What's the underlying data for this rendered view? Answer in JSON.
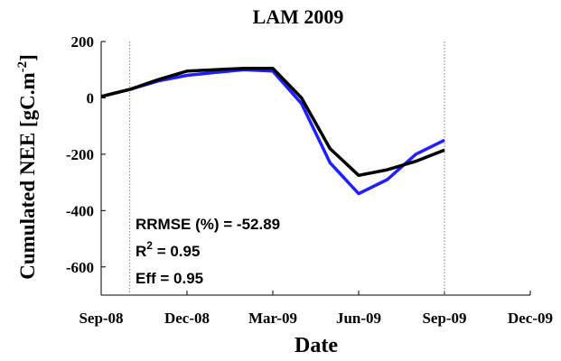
{
  "chart_data": {
    "type": "line",
    "title": "LAM 2009",
    "xlabel": "Date",
    "ylabel": {
      "text": "Cumulated NEE [gC.m",
      "sup": "-2",
      "tail": "]"
    },
    "x": [
      "2008-09",
      "2008-10",
      "2008-11",
      "2008-12",
      "2009-01",
      "2009-02",
      "2009-03",
      "2009-04",
      "2009-05",
      "2009-06",
      "2009-07",
      "2009-08",
      "2009-09"
    ],
    "series": [
      {
        "color": "#1f1fff",
        "values": [
          5,
          30,
          60,
          80,
          90,
          100,
          95,
          -20,
          -230,
          -340,
          -290,
          -200,
          -150
        ]
      },
      {
        "color": "#000000",
        "values": [
          5,
          30,
          65,
          95,
          100,
          105,
          105,
          0,
          -180,
          -275,
          -255,
          -225,
          -185
        ]
      }
    ],
    "xlim": [
      "2008-09",
      "2009-12"
    ],
    "xticks": [
      {
        "value": "2008-09",
        "label": "Sep-08"
      },
      {
        "value": "2008-12",
        "label": "Dec-08"
      },
      {
        "value": "2009-03",
        "label": "Mar-09"
      },
      {
        "value": "2009-06",
        "label": "Jun-09"
      },
      {
        "value": "2009-09",
        "label": "Sep-09"
      },
      {
        "value": "2009-12",
        "label": "Dec-09"
      }
    ],
    "ylim": [
      -700,
      200
    ],
    "yticks": [
      -600,
      -400,
      -200,
      0,
      200
    ],
    "vlines": [
      "2008-10",
      "2009-09"
    ],
    "annotations": [
      {
        "text": "RRMSE (%) = -52.89"
      },
      {
        "text": "R",
        "sup": "2",
        "tail": " = 0.95"
      },
      {
        "text": "Eff = 0.95"
      }
    ]
  }
}
